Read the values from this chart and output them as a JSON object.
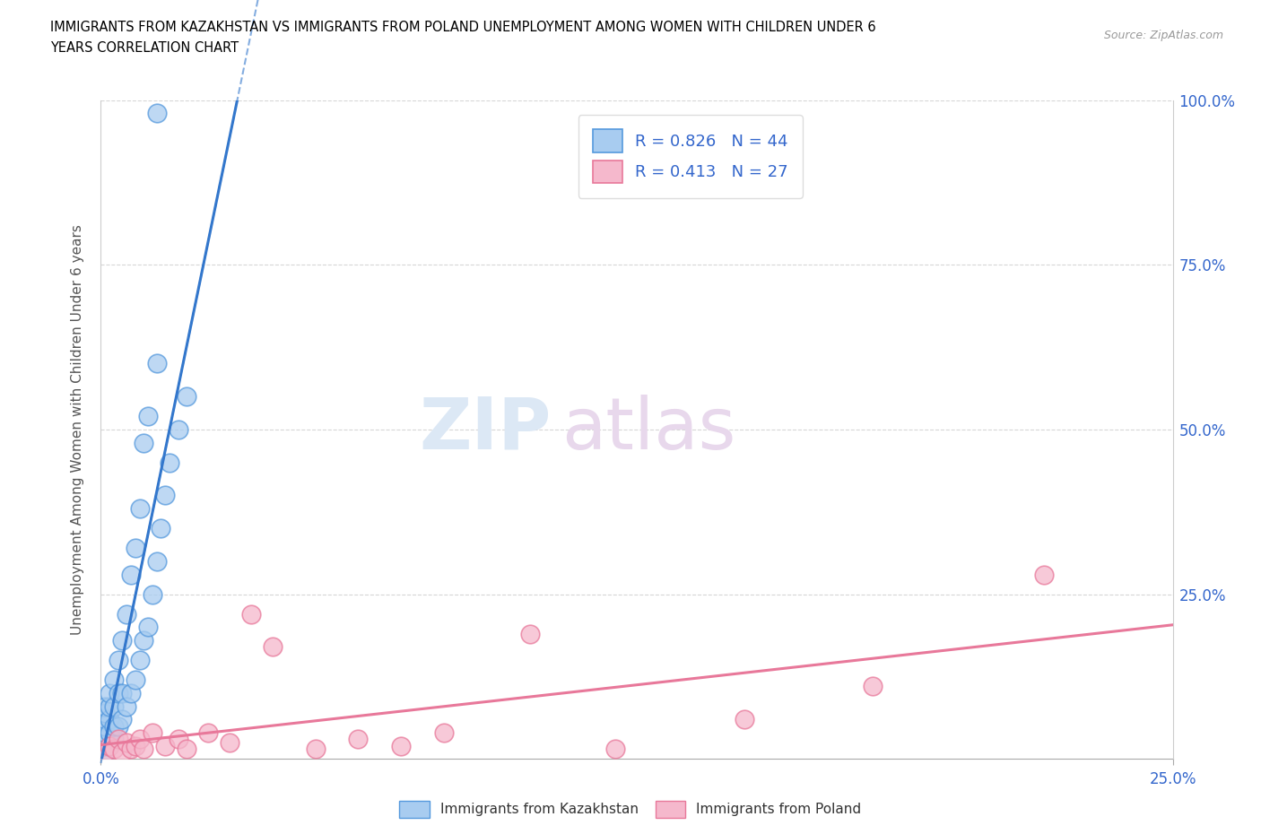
{
  "title_line1": "IMMIGRANTS FROM KAZAKHSTAN VS IMMIGRANTS FROM POLAND UNEMPLOYMENT AMONG WOMEN WITH CHILDREN UNDER 6",
  "title_line2": "YEARS CORRELATION CHART",
  "source": "Source: ZipAtlas.com",
  "ylabel_label": "Unemployment Among Women with Children Under 6 years",
  "legend_kaz": "Immigrants from Kazakhstan",
  "legend_pol": "Immigrants from Poland",
  "R_kaz": "0.826",
  "N_kaz": "44",
  "R_pol": "0.413",
  "N_pol": "27",
  "color_kaz": "#a8ccf0",
  "color_pol": "#f5b8cc",
  "edge_kaz": "#5599dd",
  "edge_pol": "#e8789a",
  "line_kaz_color": "#3377cc",
  "line_pol_color": "#e8789a",
  "xlim": [
    0.0,
    0.25
  ],
  "ylim": [
    0.0,
    1.0
  ],
  "kaz_x": [
    0.001,
    0.001,
    0.001,
    0.001,
    0.001,
    0.001,
    0.001,
    0.001,
    0.002,
    0.002,
    0.002,
    0.002,
    0.002,
    0.003,
    0.003,
    0.003,
    0.003,
    0.004,
    0.004,
    0.004,
    0.005,
    0.005,
    0.005,
    0.006,
    0.006,
    0.007,
    0.007,
    0.008,
    0.008,
    0.009,
    0.009,
    0.01,
    0.01,
    0.011,
    0.011,
    0.012,
    0.013,
    0.013,
    0.014,
    0.015,
    0.016,
    0.018,
    0.02,
    0.013
  ],
  "kaz_y": [
    0.01,
    0.02,
    0.03,
    0.04,
    0.05,
    0.06,
    0.07,
    0.08,
    0.02,
    0.04,
    0.06,
    0.08,
    0.1,
    0.03,
    0.05,
    0.08,
    0.12,
    0.05,
    0.1,
    0.15,
    0.06,
    0.1,
    0.18,
    0.08,
    0.22,
    0.1,
    0.28,
    0.12,
    0.32,
    0.15,
    0.38,
    0.18,
    0.48,
    0.2,
    0.52,
    0.25,
    0.3,
    0.6,
    0.35,
    0.4,
    0.45,
    0.5,
    0.55,
    0.98
  ],
  "pol_x": [
    0.001,
    0.002,
    0.003,
    0.004,
    0.005,
    0.006,
    0.007,
    0.008,
    0.009,
    0.01,
    0.012,
    0.015,
    0.018,
    0.02,
    0.025,
    0.03,
    0.035,
    0.04,
    0.05,
    0.06,
    0.07,
    0.08,
    0.1,
    0.12,
    0.15,
    0.18,
    0.22
  ],
  "pol_y": [
    0.01,
    0.02,
    0.015,
    0.03,
    0.01,
    0.025,
    0.015,
    0.02,
    0.03,
    0.015,
    0.04,
    0.02,
    0.03,
    0.015,
    0.04,
    0.025,
    0.22,
    0.17,
    0.015,
    0.03,
    0.02,
    0.04,
    0.19,
    0.015,
    0.06,
    0.11,
    0.28
  ]
}
